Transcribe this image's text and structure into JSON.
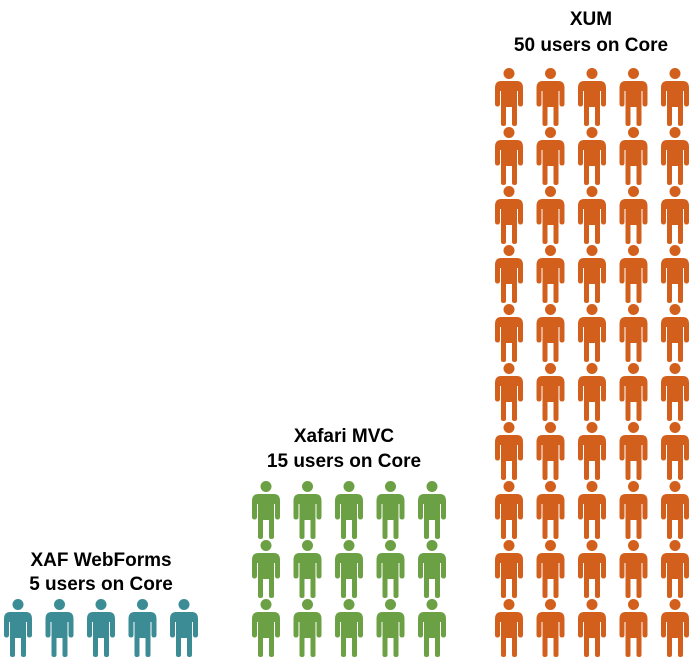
{
  "chart_data": {
    "type": "pictogram",
    "unit": "one figure = 1 user",
    "series": [
      {
        "title": "XAF WebForms",
        "subtitle": "5 users on Core",
        "users": 5,
        "color": "#3c8c96"
      },
      {
        "title": "Xafari MVC",
        "subtitle": "15 users on Core",
        "users": 15,
        "color": "#6ca044"
      },
      {
        "title": "XUM",
        "subtitle": "50 users on Core",
        "users": 50,
        "color": "#d2601c"
      }
    ]
  }
}
